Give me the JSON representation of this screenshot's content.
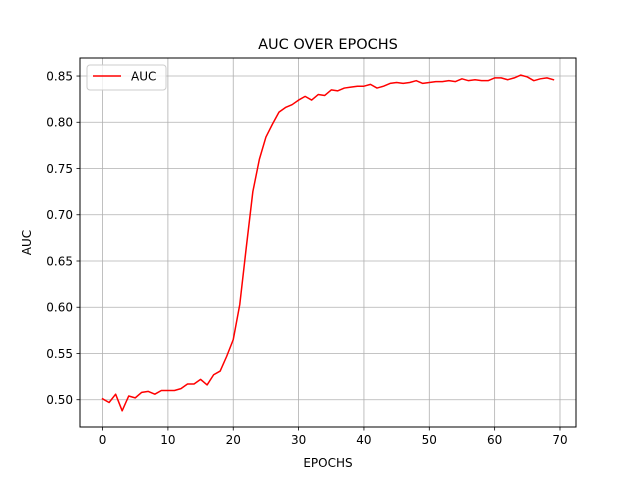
{
  "chart_data": {
    "type": "line",
    "title": "AUC OVER EPOCHS",
    "xlabel": "EPOCHS",
    "ylabel": "AUC",
    "xlim": [
      -3.45,
      72.45
    ],
    "ylim": [
      0.4705,
      0.8695
    ],
    "xticks": [
      0,
      10,
      20,
      30,
      40,
      50,
      60,
      70
    ],
    "yticks": [
      0.5,
      0.55,
      0.6,
      0.65,
      0.7,
      0.75,
      0.8,
      0.85
    ],
    "xtick_labels": [
      "0",
      "10",
      "20",
      "30",
      "40",
      "50",
      "60",
      "70"
    ],
    "ytick_labels": [
      "0.50",
      "0.55",
      "0.60",
      "0.65",
      "0.70",
      "0.75",
      "0.80",
      "0.85"
    ],
    "grid": true,
    "legend_position": "upper-left",
    "series": [
      {
        "name": "AUC",
        "color": "#ff0000",
        "x": [
          0,
          1,
          2,
          3,
          4,
          5,
          6,
          7,
          8,
          9,
          10,
          11,
          12,
          13,
          14,
          15,
          16,
          17,
          18,
          19,
          20,
          21,
          22,
          23,
          24,
          25,
          26,
          27,
          28,
          29,
          30,
          31,
          32,
          33,
          34,
          35,
          36,
          37,
          38,
          39,
          40,
          41,
          42,
          43,
          44,
          45,
          46,
          47,
          48,
          49,
          50,
          51,
          52,
          53,
          54,
          55,
          56,
          57,
          58,
          59,
          60,
          61,
          62,
          63,
          64,
          65,
          66,
          67,
          68,
          69
        ],
        "values": [
          0.501,
          0.497,
          0.506,
          0.488,
          0.504,
          0.502,
          0.508,
          0.509,
          0.506,
          0.51,
          0.51,
          0.51,
          0.512,
          0.517,
          0.517,
          0.522,
          0.516,
          0.527,
          0.531,
          0.547,
          0.565,
          0.603,
          0.665,
          0.725,
          0.76,
          0.784,
          0.798,
          0.811,
          0.816,
          0.819,
          0.824,
          0.828,
          0.824,
          0.83,
          0.829,
          0.835,
          0.834,
          0.837,
          0.838,
          0.839,
          0.839,
          0.841,
          0.837,
          0.839,
          0.842,
          0.843,
          0.842,
          0.843,
          0.845,
          0.842,
          0.843,
          0.844,
          0.844,
          0.845,
          0.844,
          0.847,
          0.845,
          0.846,
          0.845,
          0.845,
          0.848,
          0.848,
          0.846,
          0.848,
          0.851,
          0.849,
          0.845,
          0.847,
          0.848,
          0.846
        ]
      }
    ]
  }
}
